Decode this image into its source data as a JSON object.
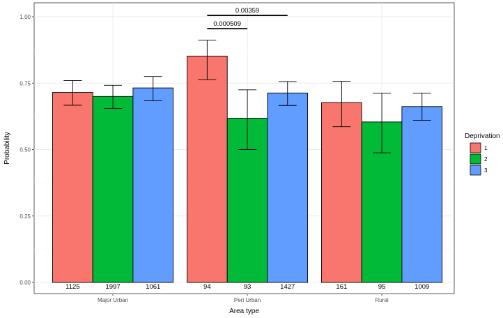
{
  "chart_data": {
    "type": "bar",
    "xlabel": "Area type",
    "ylabel": "Probability",
    "ylim": [
      0,
      1.02
    ],
    "yticks": [
      0.0,
      0.25,
      0.5,
      0.75,
      1.0
    ],
    "ytick_labels": [
      "0.00",
      "0.25",
      "0.50",
      "0.75",
      "1.00"
    ],
    "categories": [
      "Major Urban",
      "Peri Urban",
      "Rural"
    ],
    "grid": true,
    "legend": {
      "title": "Deprivation",
      "position": "right",
      "entries": [
        "1",
        "2",
        "3"
      ]
    },
    "series": [
      {
        "name": "1",
        "color": "#F8766D",
        "values": [
          0.715,
          0.852,
          0.677
        ],
        "err_low": [
          0.667,
          0.763,
          0.586
        ],
        "err_high": [
          0.76,
          0.912,
          0.757
        ],
        "counts": [
          "1125",
          "94",
          "161"
        ]
      },
      {
        "name": "2",
        "color": "#00BA38",
        "values": [
          0.7,
          0.618,
          0.604
        ],
        "err_low": [
          0.655,
          0.5,
          0.488
        ],
        "err_high": [
          0.742,
          0.725,
          0.712
        ],
        "counts": [
          "1997",
          "93",
          "95"
        ]
      },
      {
        "name": "3",
        "color": "#619CFF",
        "values": [
          0.732,
          0.713,
          0.662
        ],
        "err_low": [
          0.684,
          0.666,
          0.61
        ],
        "err_high": [
          0.775,
          0.756,
          0.712
        ],
        "counts": [
          "1061",
          "1427",
          "1009"
        ]
      }
    ],
    "annotations": [
      {
        "text": "0.000509",
        "category": 1,
        "from_series": 0,
        "to_series": 1,
        "y": 0.955
      },
      {
        "text": "0.00359",
        "category": 1,
        "from_series": 0,
        "to_series": 2,
        "y": 1.005
      }
    ]
  }
}
